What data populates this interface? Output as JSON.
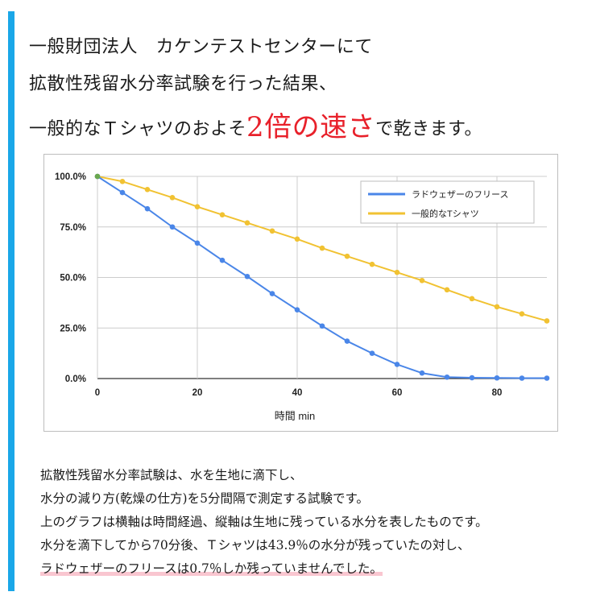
{
  "colors": {
    "accent_bar": "#1aa7e8",
    "emphasis": "#e8202a",
    "highlight": "#f9c6d0"
  },
  "heading": {
    "line1": "一般財団法人　カケンテストセンターにて",
    "line2": "拡散性残留水分率試験を行った結果、",
    "line3_prefix": "一般的なＴシャツのおよそ",
    "line3_emphasis": "2倍の速さ",
    "line3_suffix": "で乾きます。"
  },
  "chart_data": {
    "type": "line",
    "xlabel": "時間 min",
    "ylabel": "",
    "xlim": [
      0,
      90
    ],
    "ylim": [
      0,
      100
    ],
    "x_ticks": [
      0,
      20,
      40,
      60,
      80
    ],
    "y_ticks": [
      0,
      25,
      50,
      75,
      100
    ],
    "y_tick_labels": [
      "0.0%",
      "25.0%",
      "50.0%",
      "75.0%",
      "100.0%"
    ],
    "grid": true,
    "legend_position": "top-right",
    "x": [
      0,
      5,
      10,
      15,
      20,
      25,
      30,
      35,
      40,
      45,
      50,
      55,
      60,
      65,
      70,
      75,
      80,
      85,
      90
    ],
    "series": [
      {
        "name": "ラドウェザーのフリース",
        "color": "#4a86e8",
        "values": [
          100,
          92,
          84,
          75,
          67,
          58.5,
          50.5,
          42,
          34,
          26,
          18.5,
          12.5,
          7,
          2.7,
          0.7,
          0.4,
          0.3,
          0.2,
          0.2
        ]
      },
      {
        "name": "一般的なTシャツ",
        "color": "#f1c232",
        "values": [
          100,
          97.5,
          93.5,
          89.5,
          85,
          81,
          77,
          73,
          69,
          64.5,
          60.5,
          56.5,
          52.5,
          48.5,
          43.9,
          39.5,
          35.5,
          32,
          28.5
        ]
      }
    ]
  },
  "description": {
    "line1": "拡散性残留水分率試験は、水を生地に滴下し、",
    "line2": "水分の減り方(乾燥の仕方)を5分間隔で測定する試験です。",
    "line3": "上のグラフは横軸は時間経過、縦軸は生地に残っている水分を表したものです。",
    "line4": "水分を滴下してから70分後、Ｔシャツは43.9％の水分が残っていたの対し、",
    "line5": "ラドウェザーのフリースは0.7％しか残っていませんでした。"
  }
}
